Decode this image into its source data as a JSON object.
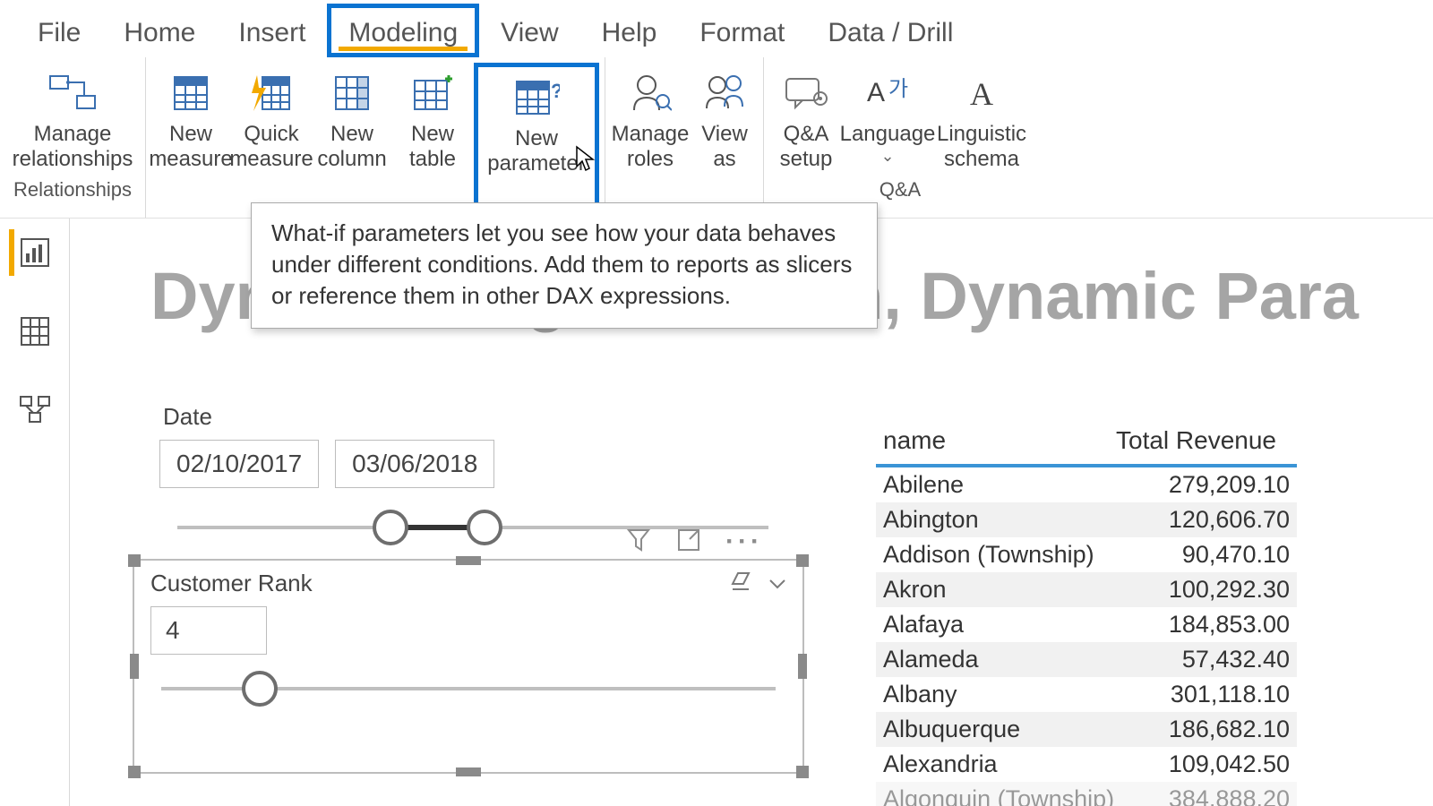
{
  "tabs": {
    "file": "File",
    "home": "Home",
    "insert": "Insert",
    "modeling": "Modeling",
    "view": "View",
    "help": "Help",
    "format": "Format",
    "datadrill": "Data / Drill"
  },
  "ribbon": {
    "manage_relationships": "Manage relationships",
    "new_measure": "New measure",
    "quick_measure": "Quick measure",
    "new_column": "New column",
    "new_table": "New table",
    "new_parameter": "New parameter",
    "manage_roles": "Manage roles",
    "view_as": "View as",
    "qa_setup": "Q&A setup",
    "language": "Language",
    "linguistic_schema": "Linguistic schema",
    "group_relationships": "Relationships",
    "group_qa": "Q&A"
  },
  "tooltip": "What-if parameters let you see how your data behaves under different conditions. Add them to reports as slicers or reference them in other DAX expressions.",
  "title": "Dynamic Segmentation, Dynamic Para",
  "date_slicer": {
    "label": "Date",
    "start": "02/10/2017",
    "end": "03/06/2018",
    "handle1_pct": 36,
    "handle2_pct": 52
  },
  "rank_slicer": {
    "title": "Customer Rank",
    "value": "4",
    "handle_pct": 16
  },
  "table": {
    "col1": "name",
    "col2": "Total Revenue",
    "rows": [
      {
        "name": "Abilene",
        "value": "279,209.10"
      },
      {
        "name": "Abington",
        "value": "120,606.70"
      },
      {
        "name": "Addison (Township)",
        "value": "90,470.10"
      },
      {
        "name": "Akron",
        "value": "100,292.30"
      },
      {
        "name": "Alafaya",
        "value": "184,853.00"
      },
      {
        "name": "Alameda",
        "value": "57,432.40"
      },
      {
        "name": "Albany",
        "value": "301,118.10"
      },
      {
        "name": "Albuquerque",
        "value": "186,682.10"
      },
      {
        "name": "Alexandria",
        "value": "109,042.50"
      },
      {
        "name": "Algonquin (Township)",
        "value": "384,888.20"
      }
    ]
  },
  "colors": {
    "highlight": "#0a73d1",
    "accent": "#f2a900",
    "table_divider": "#3a94d6",
    "title_gray": "#a5a5a5"
  }
}
